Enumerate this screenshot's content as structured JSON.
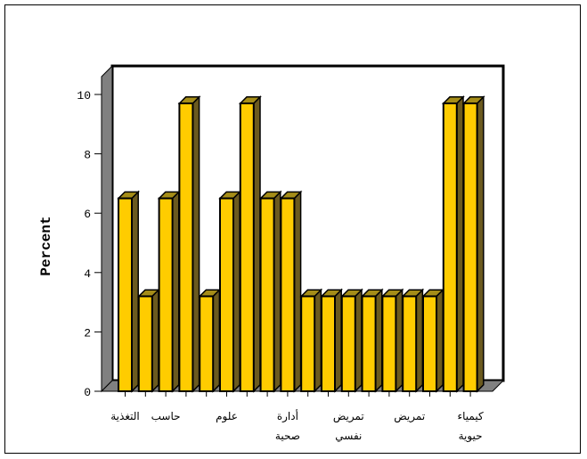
{
  "chart_data": {
    "type": "bar",
    "ylabel": "Percent",
    "xlabel": "",
    "ylim": [
      0,
      10
    ],
    "yticks": [
      0,
      2,
      4,
      6,
      8,
      10
    ],
    "categories": [
      "bar-1",
      "bar-2",
      "bar-3",
      "bar-4",
      "bar-5",
      "bar-6",
      "bar-7",
      "bar-8",
      "bar-9",
      "bar-10",
      "bar-11",
      "bar-12",
      "bar-13",
      "bar-14",
      "bar-15",
      "bar-16",
      "bar-17",
      "bar-18"
    ],
    "values": [
      6.5,
      3.2,
      6.5,
      9.7,
      3.2,
      6.5,
      9.7,
      6.5,
      6.5,
      3.2,
      3.2,
      3.2,
      3.2,
      3.2,
      3.2,
      3.2,
      9.7,
      9.7
    ],
    "category_labels": [
      {
        "bar": 1,
        "lines": [
          "التغذية"
        ]
      },
      {
        "bar": 3,
        "lines": [
          "حاسب"
        ]
      },
      {
        "bar": 6,
        "lines": [
          "علوم"
        ]
      },
      {
        "bar": 9,
        "lines": [
          "أدارة",
          "صحية"
        ]
      },
      {
        "bar": 12,
        "lines": [
          "تمريض",
          "نفسي"
        ]
      },
      {
        "bar": 15,
        "lines": [
          "تمريض"
        ]
      },
      {
        "bar": 18,
        "lines": [
          "كيمياء",
          "حيوية"
        ]
      }
    ],
    "grid": false,
    "legend": "none",
    "colors": {
      "bar_front": "#ffcc00",
      "bar_side": "#6b5a1f",
      "bar_top": "#a58d18",
      "floor": "#808080",
      "wall": "#ffffff",
      "outline": "#000000"
    }
  }
}
